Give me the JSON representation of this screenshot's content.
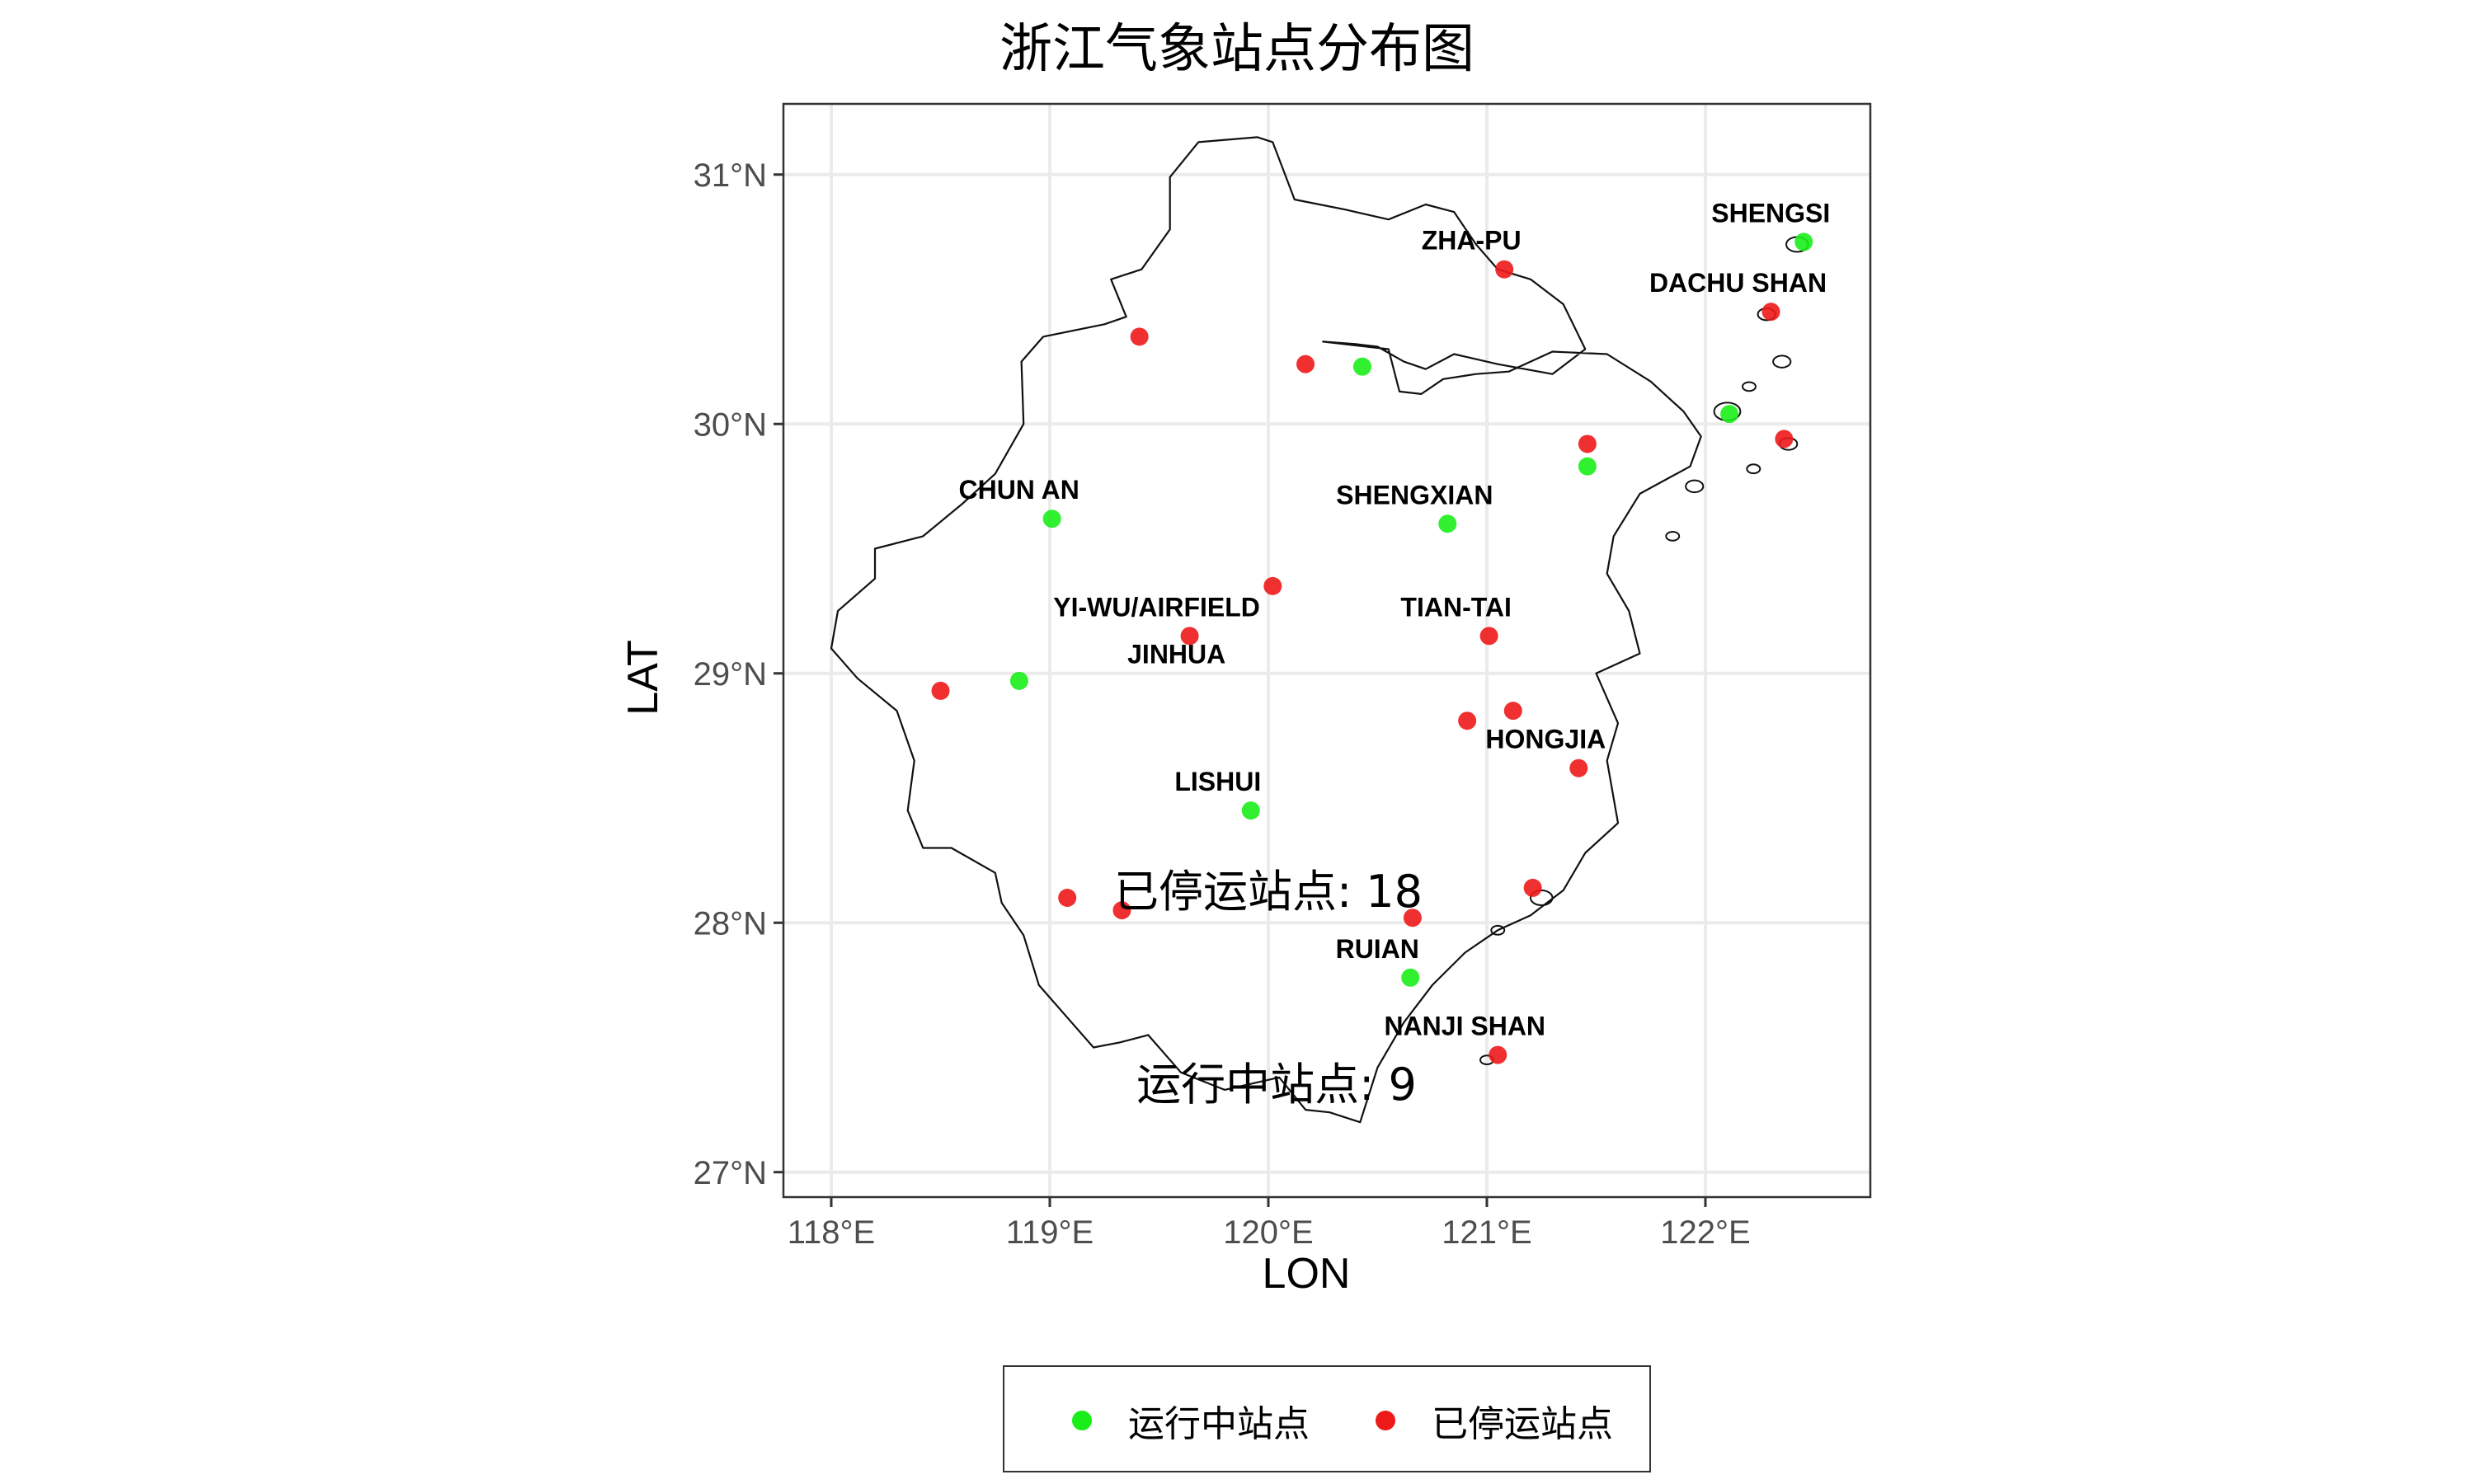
{
  "title": "浙江气象站点分布图",
  "xlabel": "LON",
  "ylabel": "LAT",
  "colors": {
    "running": "#19ee19",
    "stopped": "#ee1a1a"
  },
  "legend": {
    "running": "运行中站点",
    "stopped": "已停运站点"
  },
  "annotations": {
    "stopped_count": "已停运站点: 18",
    "running_count": "运行中站点: 9"
  },
  "chart_data": {
    "type": "scatter",
    "title": "浙江气象站点分布图",
    "xlabel": "LON",
    "ylabel": "LAT",
    "xlim": [
      117.78,
      122.75
    ],
    "ylim": [
      26.9,
      31.37
    ],
    "x_ticks": [
      118,
      119,
      120,
      121,
      122
    ],
    "x_tick_labels": [
      "118°E",
      "119°E",
      "120°E",
      "121°E",
      "122°E"
    ],
    "y_ticks": [
      27,
      28,
      29,
      30,
      31
    ],
    "y_tick_labels": [
      "27°N",
      "28°N",
      "29°N",
      "30°N",
      "31°N"
    ],
    "grid": true,
    "legend_position": "bottom",
    "series": [
      {
        "name": "运行中站点",
        "points": [
          {
            "lon": 122.45,
            "lat": 30.73,
            "label": "SHENGSI"
          },
          {
            "lon": 120.43,
            "lat": 30.23,
            "label": ""
          },
          {
            "lon": 122.11,
            "lat": 30.04,
            "label": ""
          },
          {
            "lon": 121.46,
            "lat": 29.83,
            "label": ""
          },
          {
            "lon": 119.01,
            "lat": 29.62,
            "label": "CHUN AN"
          },
          {
            "lon": 120.82,
            "lat": 29.6,
            "label": "SHENGXIAN"
          },
          {
            "lon": 118.86,
            "lat": 28.97,
            "label": ""
          },
          {
            "lon": 119.92,
            "lat": 28.45,
            "label": "LISHUI"
          },
          {
            "lon": 120.65,
            "lat": 27.78,
            "label": "RUIAN"
          }
        ]
      },
      {
        "name": "已停运站点",
        "points": [
          {
            "lon": 121.08,
            "lat": 30.62,
            "label": "ZHA-PU"
          },
          {
            "lon": 122.3,
            "lat": 30.45,
            "label": "DACHU SHAN"
          },
          {
            "lon": 119.41,
            "lat": 30.35,
            "label": ""
          },
          {
            "lon": 120.17,
            "lat": 30.24,
            "label": ""
          },
          {
            "lon": 122.36,
            "lat": 29.94,
            "label": ""
          },
          {
            "lon": 121.46,
            "lat": 29.92,
            "label": ""
          },
          {
            "lon": 120.02,
            "lat": 29.35,
            "label": ""
          },
          {
            "lon": 119.64,
            "lat": 29.15,
            "label": "YI-WU/AIRFIELD"
          },
          {
            "lon": 121.01,
            "lat": 29.15,
            "label": "TIAN-TAI"
          },
          {
            "lon": 118.5,
            "lat": 28.93,
            "label": ""
          },
          {
            "lon": 121.12,
            "lat": 28.85,
            "label": ""
          },
          {
            "lon": 120.91,
            "lat": 28.81,
            "label": ""
          },
          {
            "lon": 121.42,
            "lat": 28.62,
            "label": "HONGJIA"
          },
          {
            "lon": 121.21,
            "lat": 28.14,
            "label": ""
          },
          {
            "lon": 119.08,
            "lat": 28.1,
            "label": ""
          },
          {
            "lon": 119.33,
            "lat": 28.05,
            "label": ""
          },
          {
            "lon": 120.66,
            "lat": 28.02,
            "label": ""
          },
          {
            "lon": 121.05,
            "lat": 27.47,
            "label": "NANJI SHAN"
          }
        ]
      }
    ],
    "extra_labels": [
      {
        "text": "JINHUA",
        "lon": 119.58,
        "lat": 29.04
      }
    ]
  }
}
